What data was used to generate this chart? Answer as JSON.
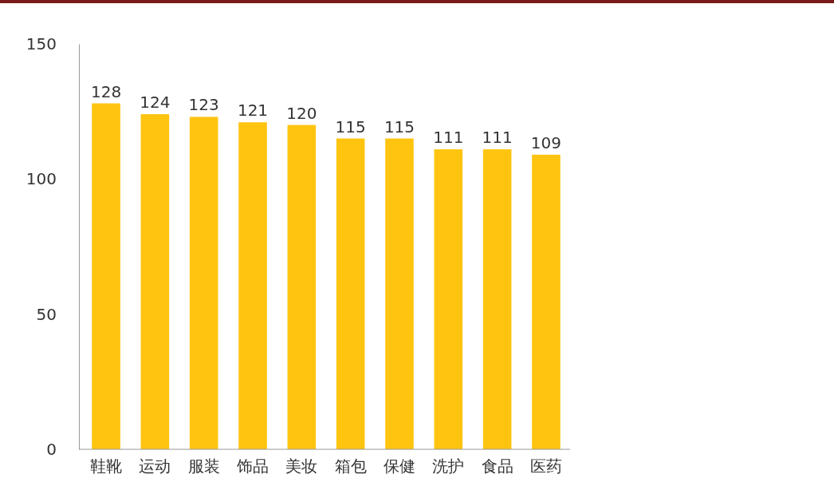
{
  "chart_data": {
    "type": "bar",
    "categories": [
      "鞋靴",
      "运动",
      "服装",
      "饰品",
      "美妆",
      "箱包",
      "保健",
      "洗护",
      "食品",
      "医药"
    ],
    "values": [
      128,
      124,
      123,
      121,
      120,
      115,
      115,
      111,
      111,
      109
    ],
    "color": "#ffc410",
    "ylim": [
      0,
      150
    ],
    "yticks": [
      0,
      50,
      100,
      150
    ],
    "grid": false,
    "data_labels": true
  }
}
